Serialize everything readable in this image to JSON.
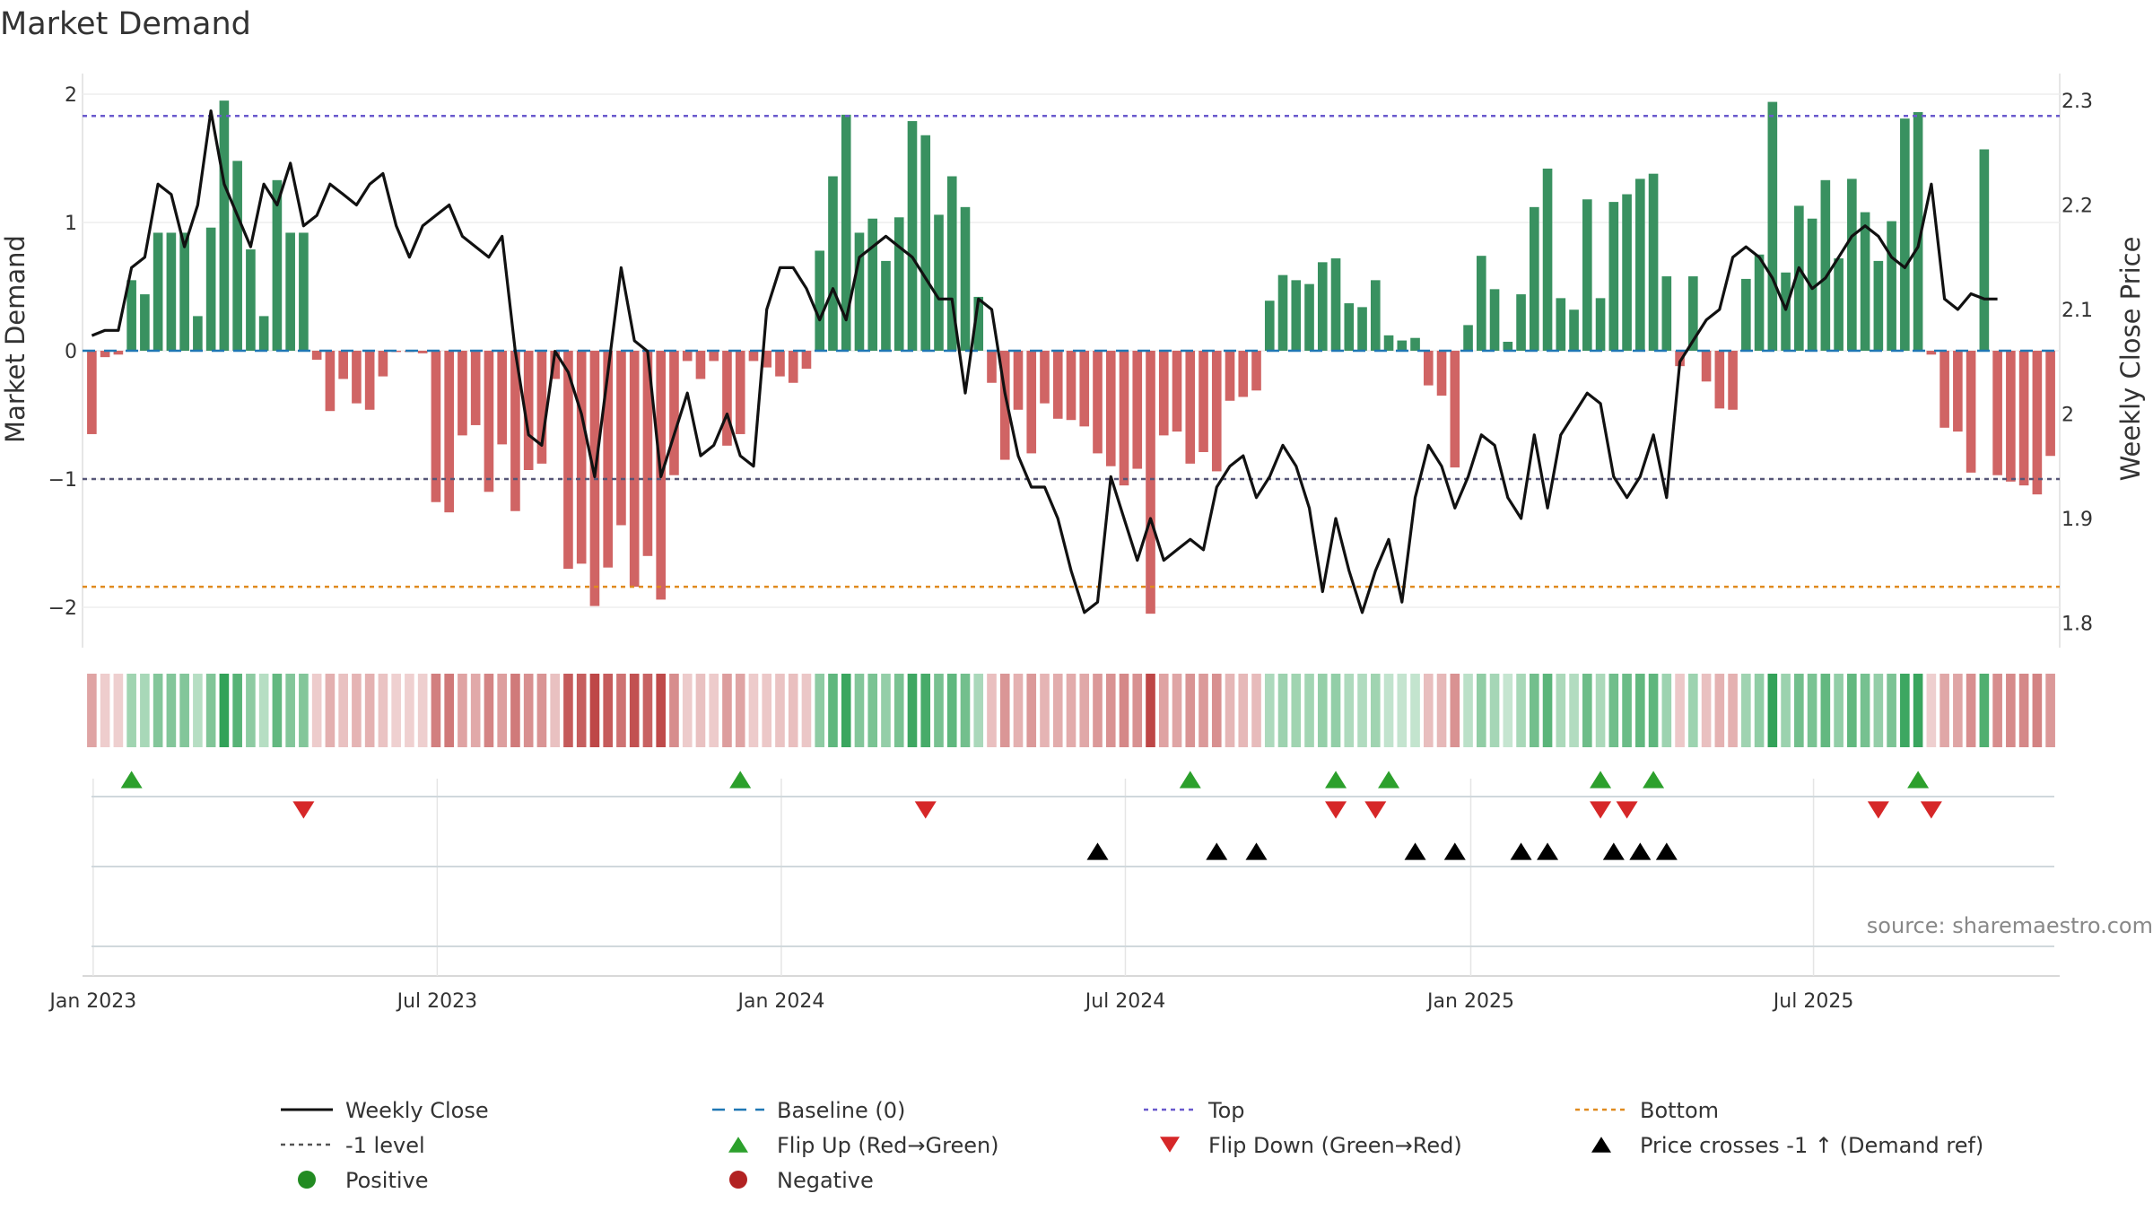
{
  "chart_data": {
    "type": "bar",
    "title": "Market Demand",
    "ylabel": "Market Demand",
    "y2label": "Weekly Close Price",
    "ylim": [
      -2.3,
      2.1
    ],
    "y2lim": [
      1.78,
      2.31
    ],
    "yticks": [
      "2",
      "1",
      "0",
      "−1",
      "−2"
    ],
    "yticks_values": [
      2,
      1,
      0,
      -1,
      -2
    ],
    "y2ticks": [
      "2.3",
      "2.2",
      "2.1",
      "2",
      "1.9",
      "1.8"
    ],
    "y2ticks_values": [
      2.3,
      2.2,
      2.1,
      2.0,
      1.9,
      1.8
    ],
    "xticks": [
      "Jan 2023",
      "Jul 2023",
      "Jan 2024",
      "Jul 2024",
      "Jan 2025",
      "Jul 2025"
    ],
    "xticks_weeks": [
      0.6,
      26.6,
      52.6,
      78.6,
      104.7,
      130.6
    ],
    "reference_lines": {
      "top": 1.83,
      "bottom": -1.84,
      "minus_one": -1,
      "baseline": 0
    },
    "demand": [
      -0.65,
      -0.05,
      -0.03,
      0.55,
      0.44,
      0.92,
      0.92,
      0.92,
      0.27,
      0.96,
      1.95,
      1.48,
      0.79,
      0.27,
      1.33,
      0.92,
      0.92,
      -0.07,
      -0.47,
      -0.22,
      -0.41,
      -0.46,
      -0.2,
      -0.01,
      -0.01,
      -0.02,
      -1.18,
      -1.26,
      -0.66,
      -0.58,
      -1.1,
      -0.73,
      -1.25,
      -0.93,
      -0.88,
      -0.22,
      -1.7,
      -1.66,
      -1.99,
      -1.69,
      -1.36,
      -1.84,
      -1.6,
      -1.94,
      -0.97,
      -0.08,
      -0.22,
      -0.08,
      -0.74,
      -0.65,
      -0.08,
      -0.13,
      -0.2,
      -0.25,
      -0.14,
      0.78,
      1.36,
      1.84,
      0.92,
      1.03,
      0.7,
      1.04,
      1.79,
      1.68,
      1.06,
      1.36,
      1.12,
      0.42,
      -0.25,
      -0.85,
      -0.46,
      -0.8,
      -0.41,
      -0.53,
      -0.54,
      -0.59,
      -0.8,
      -0.9,
      -1.05,
      -0.92,
      -2.05,
      -0.66,
      -0.63,
      -0.88,
      -0.79,
      -0.94,
      -0.39,
      -0.36,
      -0.31,
      0.39,
      0.59,
      0.55,
      0.52,
      0.69,
      0.72,
      0.37,
      0.34,
      0.55,
      0.12,
      0.08,
      0.1,
      -0.27,
      -0.35,
      -0.91,
      0.2,
      0.74,
      0.48,
      0.07,
      0.44,
      1.12,
      1.42,
      0.41,
      0.32,
      1.18,
      0.41,
      1.16,
      1.22,
      1.34,
      1.38,
      0.58,
      -0.12,
      0.58,
      -0.24,
      -0.45,
      -0.46,
      0.56,
      0.75,
      1.94,
      0.61,
      1.13,
      1.03,
      1.33,
      0.72,
      1.34,
      1.08,
      0.7,
      1.01,
      1.81,
      1.86,
      -0.03,
      -0.6,
      -0.63,
      -0.95,
      1.57,
      -0.97,
      -1.02,
      -1.05,
      -1.12,
      -0.82
    ],
    "close": [
      2.075,
      2.08,
      2.08,
      2.14,
      2.15,
      2.22,
      2.21,
      2.16,
      2.2,
      2.29,
      2.22,
      2.19,
      2.16,
      2.22,
      2.2,
      2.24,
      2.18,
      2.19,
      2.22,
      2.21,
      2.2,
      2.22,
      2.23,
      2.18,
      2.15,
      2.18,
      2.19,
      2.2,
      2.17,
      2.16,
      2.15,
      2.17,
      2.06,
      1.98,
      1.97,
      2.06,
      2.04,
      2.0,
      1.94,
      2.04,
      2.14,
      2.07,
      2.06,
      1.94,
      1.98,
      2.02,
      1.96,
      1.97,
      2.0,
      1.96,
      1.95,
      2.1,
      2.14,
      2.14,
      2.12,
      2.09,
      2.12,
      2.09,
      2.15,
      2.16,
      2.17,
      2.16,
      2.15,
      2.13,
      2.11,
      2.11,
      2.02,
      2.11,
      2.1,
      2.02,
      1.96,
      1.93,
      1.93,
      1.9,
      1.85,
      1.81,
      1.82,
      1.94,
      1.9,
      1.86,
      1.9,
      1.86,
      1.87,
      1.88,
      1.87,
      1.93,
      1.95,
      1.96,
      1.92,
      1.94,
      1.97,
      1.95,
      1.91,
      1.83,
      1.9,
      1.85,
      1.81,
      1.85,
      1.88,
      1.82,
      1.92,
      1.97,
      1.95,
      1.91,
      1.94,
      1.98,
      1.97,
      1.92,
      1.9,
      1.98,
      1.91,
      1.98,
      2.0,
      2.02,
      2.01,
      1.94,
      1.92,
      1.94,
      1.98,
      1.92,
      2.05,
      2.07,
      2.09,
      2.1,
      2.15,
      2.16,
      2.15,
      2.13,
      2.1,
      2.14,
      2.12,
      2.13,
      2.15,
      2.17,
      2.18,
      2.17,
      2.15,
      2.14,
      2.16,
      2.22,
      2.11,
      2.1,
      2.115,
      2.11,
      2.11
    ],
    "flip_up": [
      3,
      49,
      83,
      94,
      98,
      114,
      118,
      138
    ],
    "flip_down": [
      16,
      63,
      94,
      97,
      114,
      116,
      135,
      139
    ],
    "price_crosses": [
      76,
      85,
      88,
      100,
      103,
      108,
      110,
      115,
      117,
      119
    ],
    "source": "source: sharemaestro.com",
    "colors": {
      "positive_bar": "#2e8b57",
      "negative_bar": "#cd5c5c",
      "close_line": "#111111",
      "baseline": "#1f77b4",
      "top_line": "#6a5acd",
      "bottom_line": "#e08a1e",
      "minus_one_line": "#555577",
      "flip_up": "#2ca02c",
      "flip_down": "#d62728",
      "cross_marker": "#000000"
    },
    "legend": [
      {
        "label": "Weekly Close",
        "kind": "line",
        "color": "#111111",
        "dash": ""
      },
      {
        "label": "Baseline (0)",
        "kind": "line",
        "color": "#1f77b4",
        "dash": "dash"
      },
      {
        "label": "Top",
        "kind": "line",
        "color": "#6a5acd",
        "dash": "dot"
      },
      {
        "label": "Bottom",
        "kind": "line",
        "color": "#e08a1e",
        "dash": "dot"
      },
      {
        "label": "-1 level",
        "kind": "line",
        "color": "#555555",
        "dash": "dot"
      },
      {
        "label": "Flip Up (Red→Green)",
        "kind": "tri-up",
        "color": "#2ca02c",
        "dash": ""
      },
      {
        "label": "Flip Down (Green→Red)",
        "kind": "tri-down",
        "color": "#d62728",
        "dash": ""
      },
      {
        "label": "Price crosses -1 ↑ (Demand ref)",
        "kind": "tri-up",
        "color": "#000000",
        "dash": ""
      },
      {
        "label": "Positive",
        "kind": "dot",
        "color": "#228b22",
        "dash": ""
      },
      {
        "label": "Negative",
        "kind": "dot",
        "color": "#b22222",
        "dash": ""
      }
    ]
  }
}
